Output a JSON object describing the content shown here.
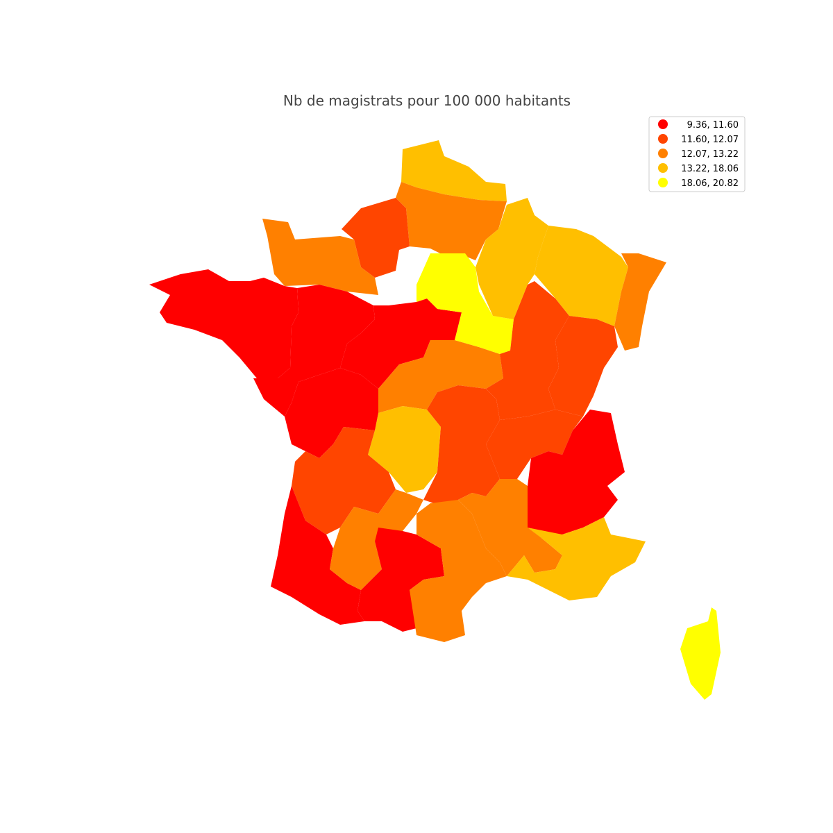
{
  "title": "Nb de magistrats pour 100 000 habitants",
  "legend": [
    {
      "label": "9.36, 11.60",
      "color": "#ff0000"
    },
    {
      "label": "11.60, 12.07",
      "color": "#ff4500"
    },
    {
      "label": "12.07, 13.22",
      "color": "#ff8000"
    },
    {
      "label": "13.22, 18.06",
      "color": "#ffbf00"
    },
    {
      "label": "18.06, 20.82",
      "color": "#ffff00"
    }
  ]
}
